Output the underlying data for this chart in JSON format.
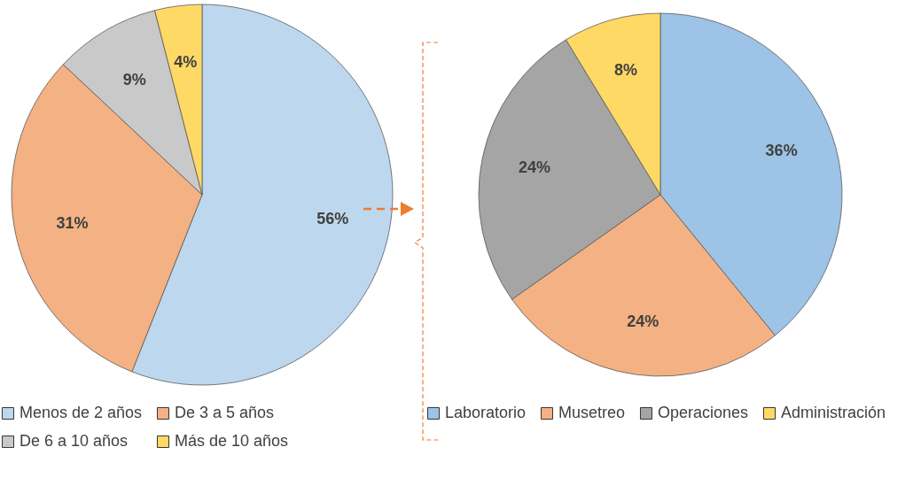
{
  "chart_data": [
    {
      "type": "pie",
      "categories": [
        "Menos de 2 años",
        "De 3 a 5 años",
        "De 6 a 10 años",
        "Más de 10 años"
      ],
      "values": [
        56,
        31,
        9,
        4
      ],
      "value_labels": [
        "56%",
        "31%",
        "9%",
        "4%"
      ],
      "colors": [
        "#bdd7ee",
        "#f4b183",
        "#c9c9c9",
        "#ffd966"
      ],
      "legend": "bottom"
    },
    {
      "type": "pie",
      "categories": [
        "Laboratorio",
        "Musetreo",
        "Operaciones",
        "Administración"
      ],
      "values": [
        36,
        24,
        24,
        8
      ],
      "value_labels": [
        "36%",
        "24%",
        "24%",
        "8%"
      ],
      "colors": [
        "#9dc3e6",
        "#f4b183",
        "#a5a5a5",
        "#ffd966"
      ],
      "legend": "bottom"
    }
  ]
}
